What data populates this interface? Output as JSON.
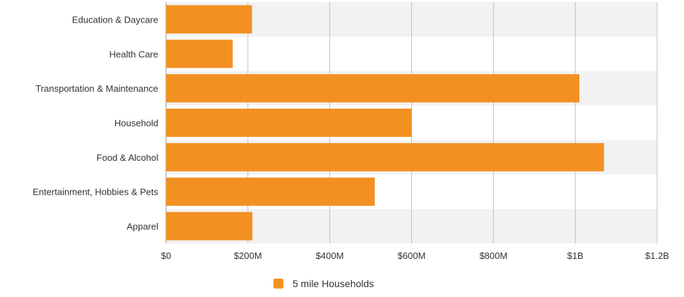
{
  "chart_data": {
    "type": "bar",
    "orientation": "horizontal",
    "categories": [
      "Education & Daycare",
      "Health Care",
      "Transportation & Maintenance",
      "Household",
      "Food & Alcohol",
      "Entertainment, Hobbies & Pets",
      "Apparel"
    ],
    "series": [
      {
        "name": "5 mile Households",
        "values": [
          210000000,
          163000000,
          1010000000,
          600000000,
          1070000000,
          510000000,
          211000000
        ]
      }
    ],
    "xlim": [
      0,
      1200000000
    ],
    "x_ticks": [
      0,
      200000000,
      400000000,
      600000000,
      800000000,
      1000000000,
      1200000000
    ],
    "x_tick_labels": [
      "$0",
      "$200M",
      "$400M",
      "$600M",
      "$800M",
      "$1B",
      "$1.2B"
    ],
    "grid": true,
    "legend_position": "bottom-center",
    "colors": {
      "bar": "#f29122",
      "band": "#f2f2f2",
      "grid": "#c0c0c0",
      "text": "#333333"
    }
  }
}
